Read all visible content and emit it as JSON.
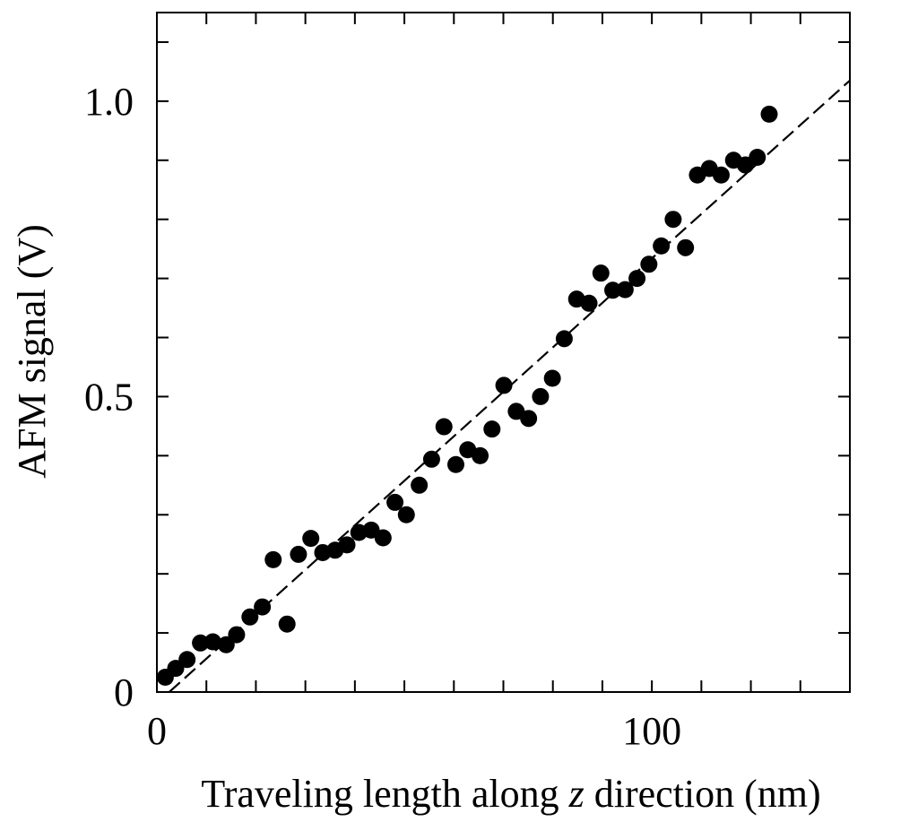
{
  "chart_data": {
    "type": "scatter",
    "xlabel_parts": [
      "Traveling length along ",
      "z",
      " direction (nm)"
    ],
    "ylabel": "AFM signal (V)",
    "xlim": [
      0,
      140
    ],
    "ylim": [
      0,
      1.15
    ],
    "x_ticks_labeled": [
      0,
      100
    ],
    "x_tick_labels": [
      "0",
      "100"
    ],
    "x_ticks_minor": [
      10,
      20,
      30,
      40,
      50,
      60,
      70,
      80,
      90,
      110,
      120,
      130
    ],
    "y_ticks_labeled": [
      0,
      0.5,
      1.0
    ],
    "y_tick_labels": [
      "0",
      "0.5",
      "1.0"
    ],
    "y_ticks_minor": [
      0.1,
      0.2,
      0.3,
      0.4,
      0.6,
      0.7,
      0.8,
      0.9,
      1.1
    ],
    "grid": false,
    "fit_line": {
      "style": "dashed",
      "color": "#000000",
      "x": [
        2.5,
        140
      ],
      "y": [
        0.0,
        1.035
      ]
    },
    "series": [
      {
        "marker": "filled-circle",
        "color": "#000000",
        "points": [
          [
            1.7,
            0.025
          ],
          [
            3.8,
            0.04
          ],
          [
            6.1,
            0.055
          ],
          [
            8.8,
            0.083
          ],
          [
            11.3,
            0.085
          ],
          [
            14.0,
            0.08
          ],
          [
            16.1,
            0.097
          ],
          [
            18.8,
            0.127
          ],
          [
            21.3,
            0.144
          ],
          [
            23.5,
            0.224
          ],
          [
            26.3,
            0.115
          ],
          [
            28.6,
            0.233
          ],
          [
            31.1,
            0.26
          ],
          [
            33.5,
            0.236
          ],
          [
            36.0,
            0.24
          ],
          [
            38.4,
            0.249
          ],
          [
            40.8,
            0.27
          ],
          [
            43.3,
            0.274
          ],
          [
            45.7,
            0.261
          ],
          [
            48.1,
            0.321
          ],
          [
            50.4,
            0.3
          ],
          [
            53.0,
            0.35
          ],
          [
            55.5,
            0.394
          ],
          [
            58.0,
            0.449
          ],
          [
            60.4,
            0.385
          ],
          [
            62.8,
            0.41
          ],
          [
            65.3,
            0.4
          ],
          [
            67.7,
            0.445
          ],
          [
            70.1,
            0.519
          ],
          [
            72.6,
            0.475
          ],
          [
            75.1,
            0.463
          ],
          [
            77.5,
            0.5
          ],
          [
            79.9,
            0.531
          ],
          [
            82.3,
            0.598
          ],
          [
            84.8,
            0.665
          ],
          [
            87.3,
            0.658
          ],
          [
            89.7,
            0.709
          ],
          [
            92.1,
            0.68
          ],
          [
            94.6,
            0.681
          ],
          [
            97.0,
            0.7
          ],
          [
            99.4,
            0.724
          ],
          [
            101.9,
            0.755
          ],
          [
            104.3,
            0.8
          ],
          [
            106.8,
            0.752
          ],
          [
            109.2,
            0.875
          ],
          [
            111.6,
            0.886
          ],
          [
            114.0,
            0.875
          ],
          [
            116.5,
            0.9
          ],
          [
            118.9,
            0.892
          ],
          [
            121.3,
            0.905
          ],
          [
            123.7,
            0.978
          ]
        ]
      }
    ]
  }
}
